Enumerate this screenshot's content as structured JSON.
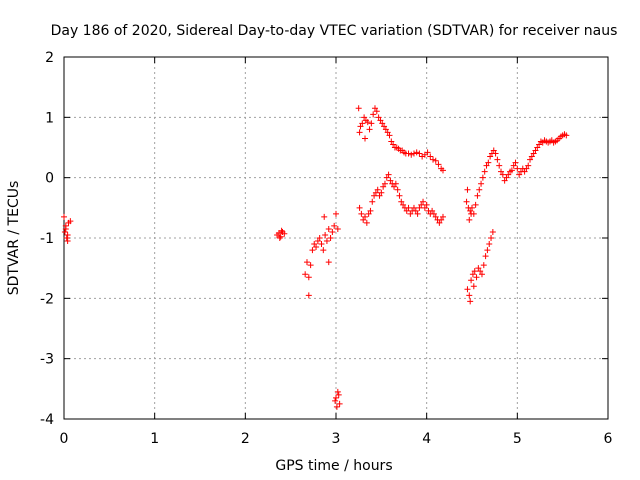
{
  "chart_data": {
    "type": "scatter",
    "title": "Day 186 of 2020, Sidereal Day-to-day VTEC variation (SDTVAR) for receiver naus",
    "xlabel": "GPS time / hours",
    "ylabel": "SDTVAR / TECUs",
    "xlim": [
      0,
      6
    ],
    "ylim": [
      -4,
      2
    ],
    "xticks": [
      "0",
      "1",
      "2",
      "3",
      "4",
      "5",
      "6"
    ],
    "yticks": [
      "-4",
      "-3",
      "-2",
      "-1",
      "0",
      "1",
      "2"
    ],
    "grid": true,
    "marker": "+",
    "color": "#ff0000",
    "series": [
      {
        "x": [
          0.0,
          0.01,
          0.02,
          0.03,
          0.04,
          0.05,
          0.07,
          0.02,
          0.04,
          2.35,
          2.37,
          2.39,
          2.41,
          2.43,
          2.38,
          2.4,
          2.66,
          2.68,
          2.7,
          2.72,
          2.74,
          2.76,
          2.78,
          2.8,
          2.82,
          2.84,
          2.86,
          2.88,
          2.9,
          2.92,
          2.94,
          2.96,
          2.98,
          3.0,
          3.02,
          2.7,
          2.87,
          2.92,
          2.99,
          3.0,
          3.01,
          3.02,
          3.03,
          3.04,
          3.25,
          3.27,
          3.29,
          3.31,
          3.33,
          3.35,
          3.37,
          3.39,
          3.41,
          3.43,
          3.45,
          3.47,
          3.49,
          3.51,
          3.53,
          3.55,
          3.57,
          3.59,
          3.61,
          3.63,
          3.65,
          3.67,
          3.69,
          3.71,
          3.73,
          3.75,
          3.77,
          3.8,
          3.83,
          3.86,
          3.89,
          3.92,
          3.95,
          3.98,
          4.01,
          4.04,
          4.07,
          4.1,
          4.13,
          4.16,
          4.18,
          3.26,
          3.32,
          3.26,
          3.28,
          3.3,
          3.32,
          3.34,
          3.36,
          3.38,
          3.4,
          3.42,
          3.44,
          3.46,
          3.48,
          3.5,
          3.52,
          3.54,
          3.56,
          3.58,
          3.6,
          3.62,
          3.64,
          3.66,
          3.68,
          3.7,
          3.72,
          3.74,
          3.76,
          3.78,
          3.8,
          3.82,
          3.84,
          3.86,
          3.88,
          3.9,
          3.92,
          3.94,
          3.96,
          3.98,
          4.0,
          4.02,
          4.04,
          4.06,
          4.08,
          4.1,
          4.12,
          4.14,
          4.16,
          4.18,
          4.44,
          4.45,
          4.46,
          4.47,
          4.48,
          4.49,
          4.5,
          4.52,
          4.54,
          4.56,
          4.58,
          4.6,
          4.62,
          4.64,
          4.66,
          4.68,
          4.7,
          4.72,
          4.74,
          4.76,
          4.78,
          4.8,
          4.82,
          4.84,
          4.86,
          4.88,
          4.9,
          4.92,
          4.94,
          4.96,
          4.98,
          5.0,
          5.02,
          5.04,
          5.06,
          5.08,
          5.1,
          5.12,
          5.14,
          5.16,
          5.18,
          5.2,
          5.22,
          5.24,
          5.26,
          5.28,
          5.3,
          5.32,
          5.34,
          5.36,
          5.38,
          5.4,
          5.42,
          5.44,
          5.46,
          5.48,
          5.5,
          5.52,
          5.54,
          4.45,
          4.47,
          4.49,
          4.51,
          4.53,
          4.55,
          4.57,
          4.59,
          4.61,
          4.63,
          4.65,
          4.67,
          4.69,
          4.71,
          4.73,
          4.48,
          4.52
        ],
        "y": [
          -0.65,
          -0.9,
          -0.85,
          -1.0,
          -0.95,
          -0.75,
          -0.72,
          -0.8,
          -1.05,
          -0.95,
          -0.92,
          -0.98,
          -0.9,
          -0.93,
          -1.0,
          -0.88,
          -1.6,
          -1.4,
          -1.65,
          -1.45,
          -1.2,
          -1.1,
          -1.15,
          -1.05,
          -1.0,
          -1.1,
          -1.2,
          -0.95,
          -1.05,
          -0.85,
          -1.0,
          -0.9,
          -0.8,
          -0.6,
          -0.85,
          -1.95,
          -0.65,
          -1.4,
          -3.7,
          -3.65,
          -3.8,
          -3.55,
          -3.6,
          -3.75,
          1.15,
          0.85,
          0.9,
          1.0,
          0.95,
          0.92,
          0.8,
          0.9,
          1.05,
          1.15,
          1.1,
          1.0,
          0.95,
          0.9,
          0.85,
          0.8,
          0.75,
          0.7,
          0.6,
          0.55,
          0.5,
          0.5,
          0.48,
          0.45,
          0.45,
          0.42,
          0.4,
          0.4,
          0.38,
          0.4,
          0.42,
          0.4,
          0.35,
          0.38,
          0.42,
          0.35,
          0.3,
          0.28,
          0.22,
          0.15,
          0.12,
          0.75,
          0.65,
          -0.5,
          -0.6,
          -0.7,
          -0.65,
          -0.75,
          -0.6,
          -0.55,
          -0.4,
          -0.3,
          -0.25,
          -0.2,
          -0.3,
          -0.25,
          -0.15,
          -0.1,
          0.0,
          0.05,
          -0.05,
          -0.1,
          -0.15,
          -0.1,
          -0.2,
          -0.3,
          -0.4,
          -0.45,
          -0.5,
          -0.55,
          -0.5,
          -0.6,
          -0.55,
          -0.5,
          -0.55,
          -0.6,
          -0.5,
          -0.45,
          -0.4,
          -0.5,
          -0.45,
          -0.55,
          -0.6,
          -0.55,
          -0.6,
          -0.65,
          -0.7,
          -0.75,
          -0.7,
          -0.65,
          -0.4,
          -0.2,
          -0.5,
          -0.7,
          -0.55,
          -0.6,
          -0.5,
          -0.6,
          -0.45,
          -0.3,
          -0.2,
          -0.1,
          0.0,
          0.1,
          0.2,
          0.25,
          0.35,
          0.4,
          0.45,
          0.4,
          0.3,
          0.2,
          0.1,
          0.05,
          -0.05,
          0.0,
          0.05,
          0.1,
          0.12,
          0.2,
          0.25,
          0.15,
          0.05,
          0.1,
          0.15,
          0.1,
          0.15,
          0.2,
          0.3,
          0.35,
          0.4,
          0.45,
          0.5,
          0.55,
          0.6,
          0.58,
          0.62,
          0.6,
          0.58,
          0.6,
          0.62,
          0.58,
          0.6,
          0.62,
          0.65,
          0.68,
          0.7,
          0.72,
          0.7,
          -1.85,
          -1.95,
          -1.7,
          -1.6,
          -1.55,
          -1.65,
          -1.5,
          -1.55,
          -1.6,
          -1.45,
          -1.3,
          -1.2,
          -1.1,
          -1.0,
          -0.9,
          -2.05,
          -1.8
        ]
      }
    ]
  }
}
